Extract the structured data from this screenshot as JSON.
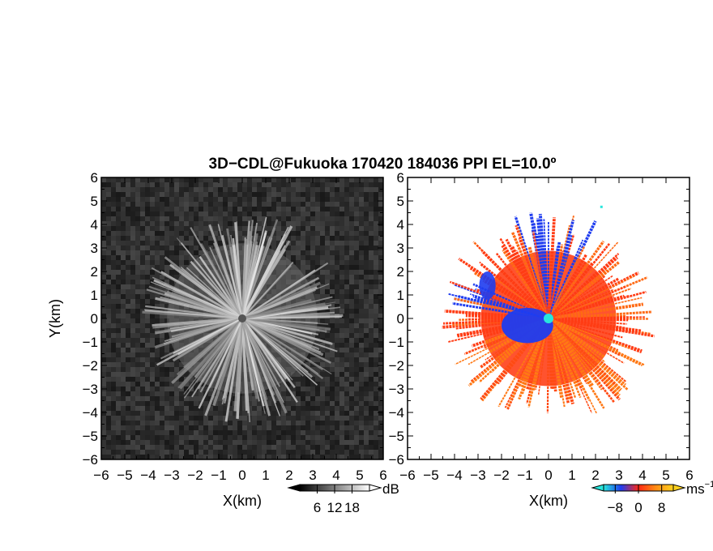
{
  "title": "3D−CDL@Fukuoka 170420 184036 PPI EL=10.0º",
  "colors": {
    "background": "#ffffff",
    "reflectivity_background": "#2e2e2e",
    "velocity_blue": "#1e3cf0",
    "velocity_red": "#ff3c14",
    "velocity_orange": "#ff7814",
    "radar_center": "#28e6dc"
  },
  "chart_data": [
    {
      "type": "heatmap",
      "name": "reflectivity-ppi",
      "xlabel": "X(km)",
      "ylabel": "Y(km)",
      "xlim": [
        -6,
        6
      ],
      "ylim": [
        -6,
        6
      ],
      "x_ticks": [
        "−6",
        "−5",
        "−4",
        "−3",
        "−2",
        "−1",
        "0",
        "1",
        "2",
        "3",
        "4",
        "5",
        "6"
      ],
      "y_ticks": [
        "6",
        "5",
        "4",
        "3",
        "2",
        "1",
        "0",
        "−1",
        "−2",
        "−3",
        "−4",
        "−5",
        "−6"
      ],
      "colormap": "grayscale",
      "echo_radius_km": 4,
      "colorbar": {
        "unit": "dB",
        "ticks": [
          "6",
          "12",
          "18"
        ],
        "tick_values": [
          6,
          12,
          18
        ],
        "range": [
          0,
          24
        ],
        "colors": [
          "#000000",
          "#ffffff"
        ]
      }
    },
    {
      "type": "heatmap",
      "name": "doppler-velocity-ppi",
      "xlabel": "X(km)",
      "xlim": [
        -6,
        6
      ],
      "ylim": [
        -6,
        6
      ],
      "x_ticks": [
        "−6",
        "−5",
        "−4",
        "−3",
        "−2",
        "−1",
        "0",
        "1",
        "2",
        "3",
        "4",
        "5",
        "6"
      ],
      "y_ticks": [
        "6",
        "5",
        "4",
        "3",
        "2",
        "1",
        "0",
        "−1",
        "−2",
        "−3",
        "−4",
        "−5",
        "−6"
      ],
      "colormap": "diverging blue-red",
      "echo_radius_km": 4,
      "colorbar": {
        "unit": "ms",
        "unit_exponent": "−1",
        "ticks": [
          "−8",
          "0",
          "8"
        ],
        "tick_values": [
          -8,
          0,
          8
        ],
        "range": [
          -12,
          12
        ],
        "colors": [
          "#28e6dc",
          "#1e3cf0",
          "#ff2814",
          "#ff8c14",
          "#ffd21e"
        ]
      }
    }
  ]
}
